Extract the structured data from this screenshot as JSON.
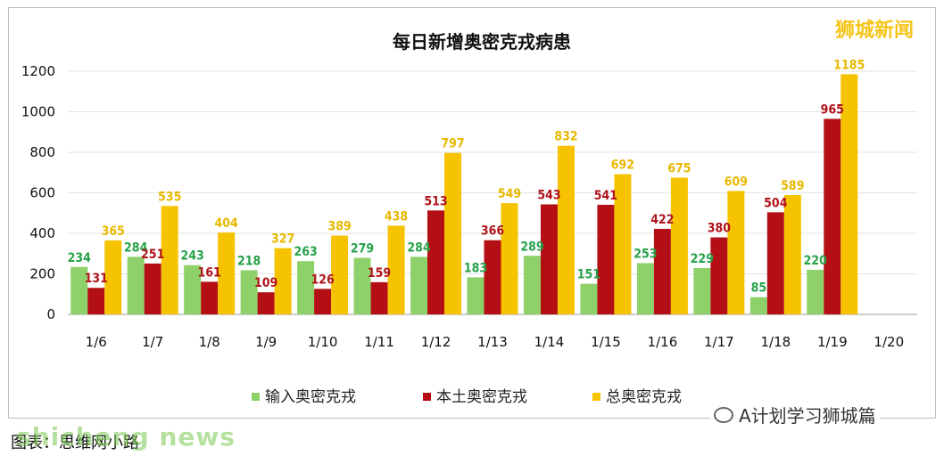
{
  "brand": "狮城新闻",
  "caption": "图表：思维网小路",
  "watermark": "shicheng news",
  "wechat_account": "A计划学习狮城篇",
  "colors": {
    "imported": "#8ed069",
    "local": "#b30f14",
    "total": "#f6c300",
    "imported_label": "#27a24a",
    "local_label": "#b0131a",
    "total_label": "#e8b800"
  },
  "chart_data": {
    "type": "bar",
    "title": "每日新增奥密克戎病患",
    "categories": [
      "1/6",
      "1/7",
      "1/8",
      "1/9",
      "1/10",
      "1/11",
      "1/12",
      "1/13",
      "1/14",
      "1/15",
      "1/16",
      "1/17",
      "1/18",
      "1/19",
      "1/20"
    ],
    "series": [
      {
        "name": "输入奥密克戎",
        "values": [
          234,
          284,
          243,
          218,
          263,
          279,
          284,
          183,
          289,
          151,
          253,
          229,
          85,
          220,
          null
        ]
      },
      {
        "name": "本土奥密克戎",
        "values": [
          131,
          251,
          161,
          109,
          126,
          159,
          513,
          366,
          543,
          541,
          422,
          380,
          504,
          965,
          null
        ]
      },
      {
        "name": "总奥密克戎",
        "values": [
          365,
          535,
          404,
          327,
          389,
          438,
          797,
          549,
          832,
          692,
          675,
          609,
          589,
          1185,
          null
        ]
      }
    ],
    "ylim": [
      0,
      1200
    ],
    "yticks": [
      0,
      200,
      400,
      600,
      800,
      1000,
      1200
    ],
    "grid": true,
    "legend": "bottom"
  }
}
